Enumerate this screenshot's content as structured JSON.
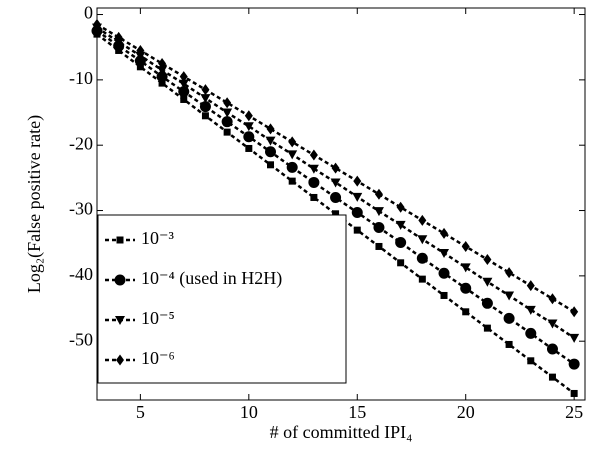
{
  "chart_data": {
    "type": "line",
    "xlabel": "# of committed IPI₄",
    "ylabel": "Log₂(False positive rate)",
    "x": [
      3,
      4,
      5,
      6,
      7,
      8,
      9,
      10,
      11,
      12,
      13,
      14,
      15,
      16,
      17,
      18,
      19,
      20,
      21,
      22,
      23,
      24,
      25
    ],
    "series": [
      {
        "name": "10⁻³",
        "color": "#000000",
        "marker": "square",
        "values": [
          -3,
          -5.5,
          -8,
          -10.5,
          -13,
          -15.5,
          -18,
          -20.5,
          -23,
          -25.5,
          -28,
          -30.5,
          -33,
          -35.5,
          -38,
          -40.5,
          -43,
          -45.5,
          -48,
          -50.5,
          -53,
          -55.5,
          -58
        ]
      },
      {
        "name": "10⁻⁴ (used in H2H)",
        "color": "#000000",
        "marker": "circle",
        "values": [
          -2.5,
          -4.8,
          -7.1,
          -9.5,
          -11.8,
          -14.1,
          -16.4,
          -18.7,
          -21.0,
          -23.4,
          -25.7,
          -28.0,
          -30.3,
          -32.6,
          -34.9,
          -37.3,
          -39.6,
          -41.9,
          -44.2,
          -46.5,
          -48.8,
          -51.2,
          -53.5
        ]
      },
      {
        "name": "10⁻⁵",
        "color": "#000000",
        "marker": "triangle-down",
        "values": [
          -2,
          -4.2,
          -6.3,
          -8.5,
          -10.6,
          -12.8,
          -15.0,
          -17.1,
          -19.3,
          -21.4,
          -23.6,
          -25.7,
          -27.9,
          -30.1,
          -32.2,
          -34.4,
          -36.5,
          -38.7,
          -40.9,
          -43.0,
          -45.2,
          -47.3,
          -49.5
        ]
      },
      {
        "name": "10⁻⁶",
        "color": "#000000",
        "marker": "diamond",
        "values": [
          -1.5,
          -3.5,
          -5.5,
          -7.5,
          -9.5,
          -11.5,
          -13.5,
          -15.5,
          -17.5,
          -19.5,
          -21.5,
          -23.5,
          -25.5,
          -27.5,
          -29.5,
          -31.5,
          -33.5,
          -35.5,
          -37.5,
          -39.5,
          -41.5,
          -43.5,
          -45.5
        ]
      }
    ],
    "xlim": [
      3,
      25.5
    ],
    "ylim": [
      -59,
      1
    ],
    "xticks": [
      5,
      10,
      15,
      20,
      25
    ],
    "yticks": [
      0,
      -10,
      -20,
      -30,
      -40,
      -50
    ],
    "grid": false,
    "legend": "lower left"
  }
}
